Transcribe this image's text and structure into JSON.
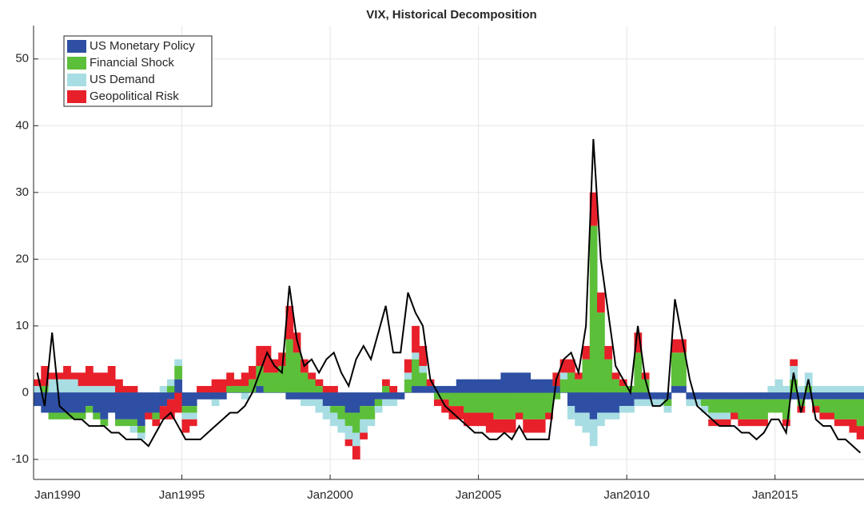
{
  "chart_data": {
    "type": "bar",
    "stacked": true,
    "title": "VIX, Historical Decomposition",
    "x": [
      "1990-01",
      "1990-04",
      "1990-07",
      "1990-10",
      "1991-01",
      "1991-04",
      "1991-07",
      "1991-10",
      "1992-01",
      "1992-04",
      "1992-07",
      "1992-10",
      "1993-01",
      "1993-04",
      "1993-07",
      "1993-10",
      "1994-01",
      "1994-04",
      "1994-07",
      "1994-10",
      "1995-01",
      "1995-04",
      "1995-07",
      "1995-10",
      "1996-01",
      "1996-04",
      "1996-07",
      "1996-10",
      "1997-01",
      "1997-04",
      "1997-07",
      "1997-10",
      "1998-01",
      "1998-04",
      "1998-07",
      "1998-10",
      "1999-01",
      "1999-04",
      "1999-07",
      "1999-10",
      "2000-01",
      "2000-04",
      "2000-07",
      "2000-10",
      "2001-01",
      "2001-04",
      "2001-07",
      "2001-10",
      "2002-01",
      "2002-04",
      "2002-07",
      "2002-10",
      "2003-01",
      "2003-04",
      "2003-07",
      "2003-10",
      "2004-01",
      "2004-04",
      "2004-07",
      "2004-10",
      "2005-01",
      "2005-04",
      "2005-07",
      "2005-10",
      "2006-01",
      "2006-04",
      "2006-07",
      "2006-10",
      "2007-01",
      "2007-04",
      "2007-07",
      "2007-10",
      "2008-01",
      "2008-04",
      "2008-07",
      "2008-10",
      "2009-01",
      "2009-04",
      "2009-07",
      "2009-10",
      "2010-01",
      "2010-04",
      "2010-07",
      "2010-10",
      "2011-01",
      "2011-04",
      "2011-07",
      "2011-10",
      "2012-01",
      "2012-04",
      "2012-07",
      "2012-10",
      "2013-01",
      "2013-04",
      "2013-07",
      "2013-10",
      "2014-01",
      "2014-04",
      "2014-07",
      "2014-10",
      "2015-01",
      "2015-04",
      "2015-07",
      "2015-10",
      "2016-01",
      "2016-04",
      "2016-07",
      "2016-10",
      "2017-01",
      "2017-04",
      "2017-07",
      "2017-10"
    ],
    "series": [
      {
        "name": "US Monetary Policy",
        "color": "#2e4fa3",
        "values": [
          -2,
          -3,
          -3,
          -3,
          -3,
          -3,
          -3,
          -2,
          -3,
          -4,
          -3,
          -4,
          -4,
          -4,
          -5,
          -3,
          -3,
          -2,
          -1,
          2,
          -2,
          -2,
          -1,
          -1,
          -1,
          -1,
          0,
          0,
          0,
          0,
          1,
          0,
          0,
          0,
          -1,
          -1,
          -1,
          -1,
          -1,
          -2,
          -2,
          -2,
          -3,
          -3,
          -2,
          -2,
          -1,
          -1,
          -1,
          -1,
          0,
          1,
          1,
          1,
          1,
          1,
          1,
          2,
          2,
          2,
          2,
          2,
          2,
          3,
          3,
          3,
          3,
          2,
          2,
          2,
          1,
          0,
          -2,
          -3,
          -3,
          -4,
          -3,
          -3,
          -3,
          -2,
          -2,
          -1,
          -1,
          -1,
          -1,
          -1,
          1,
          1,
          -1,
          -1,
          -1,
          -1,
          -1,
          -1,
          -1,
          -1,
          -1,
          -1,
          -1,
          -1,
          -1,
          -1,
          -1,
          -1,
          -1,
          -1,
          -1,
          -1,
          -1,
          -1,
          -1,
          -1
        ]
      },
      {
        "name": "Financial Shock",
        "color": "#5cbf3a",
        "values": [
          0,
          1,
          -1,
          -1,
          -1,
          -1,
          -1,
          -1,
          -1,
          -1,
          0,
          -1,
          -1,
          -1,
          -1,
          0,
          -1,
          0,
          1,
          2,
          -1,
          -1,
          0,
          0,
          0,
          0,
          1,
          1,
          1,
          2,
          3,
          3,
          3,
          4,
          8,
          6,
          3,
          2,
          1,
          0,
          -1,
          -2,
          -2,
          -3,
          -2,
          -2,
          -1,
          1,
          0,
          0,
          2,
          4,
          2,
          0,
          -1,
          -1,
          -2,
          -2,
          -3,
          -3,
          -3,
          -3,
          -4,
          -4,
          -4,
          -3,
          -4,
          -4,
          -4,
          -3,
          -1,
          2,
          3,
          2,
          5,
          25,
          12,
          5,
          2,
          1,
          1,
          6,
          2,
          0,
          0,
          -1,
          5,
          5,
          0,
          0,
          -1,
          -2,
          -2,
          -2,
          -2,
          -3,
          -3,
          -3,
          -3,
          -2,
          -2,
          -3,
          2,
          -1,
          1,
          -1,
          -2,
          -2,
          -3,
          -3,
          -3,
          -4
        ]
      },
      {
        "name": "US Demand",
        "color": "#a8dde3",
        "values": [
          1,
          0,
          2,
          2,
          2,
          2,
          1,
          1,
          1,
          1,
          1,
          0,
          0,
          -1,
          -1,
          0,
          0,
          1,
          1,
          1,
          -1,
          -1,
          0,
          0,
          -1,
          0,
          0,
          0,
          -1,
          0,
          0,
          0,
          0,
          0,
          0,
          0,
          -1,
          -1,
          -2,
          -2,
          -2,
          -2,
          -2,
          -2,
          -2,
          -1,
          -1,
          -1,
          -1,
          0,
          1,
          1,
          1,
          0,
          0,
          0,
          0,
          0,
          0,
          0,
          0,
          0,
          0,
          0,
          0,
          0,
          0,
          0,
          0,
          0,
          0,
          1,
          -2,
          -2,
          -3,
          -4,
          -2,
          -1,
          -1,
          -1,
          -1,
          -1,
          -1,
          -1,
          -1,
          -1,
          0,
          0,
          -1,
          -1,
          -1,
          -1,
          -1,
          -1,
          0,
          0,
          0,
          0,
          0,
          1,
          2,
          1,
          2,
          1,
          2,
          1,
          1,
          1,
          1,
          1,
          1,
          1
        ]
      },
      {
        "name": "Geopolitical Risk",
        "color": "#e8202a",
        "values": [
          1,
          3,
          1,
          1,
          2,
          1,
          2,
          3,
          2,
          2,
          3,
          2,
          1,
          1,
          0,
          -1,
          -1,
          -2,
          -3,
          -3,
          -2,
          -1,
          1,
          1,
          2,
          2,
          2,
          1,
          2,
          2,
          3,
          4,
          2,
          2,
          5,
          3,
          2,
          1,
          1,
          1,
          1,
          0,
          -1,
          -2,
          -1,
          0,
          0,
          1,
          1,
          0,
          2,
          4,
          3,
          1,
          -1,
          -2,
          -2,
          -2,
          -2,
          -2,
          -2,
          -3,
          -2,
          -2,
          -2,
          -1,
          -2,
          -2,
          -2,
          -1,
          2,
          2,
          2,
          1,
          2,
          5,
          3,
          2,
          1,
          1,
          0,
          3,
          1,
          0,
          0,
          0,
          2,
          2,
          0,
          0,
          0,
          -1,
          -1,
          -1,
          -1,
          -1,
          -1,
          -1,
          -1,
          0,
          0,
          -1,
          1,
          -1,
          0,
          -1,
          -1,
          -1,
          -1,
          -1,
          -2,
          -2
        ]
      }
    ],
    "line": {
      "color": "#000000",
      "values": [
        3,
        -2,
        9,
        -2,
        -3,
        -4,
        -4,
        -5,
        -5,
        -5,
        -6,
        -6,
        -7,
        -7,
        -7,
        -8,
        -6,
        -4,
        -3,
        -5,
        -7,
        -7,
        -7,
        -6,
        -5,
        -4,
        -3,
        -3,
        -2,
        0,
        3,
        6,
        4,
        3,
        16,
        8,
        4,
        5,
        3,
        5,
        6,
        3,
        1,
        5,
        7,
        5,
        9,
        13,
        6,
        6,
        15,
        12,
        10,
        2,
        0,
        -2,
        -3,
        -4,
        -5,
        -6,
        -6,
        -7,
        -7,
        -6,
        -7,
        -5,
        -7,
        -7,
        -7,
        -7,
        2,
        5,
        6,
        3,
        10,
        38,
        20,
        12,
        4,
        2,
        0,
        10,
        2,
        -2,
        -2,
        -1,
        14,
        8,
        2,
        -2,
        -3,
        -4,
        -5,
        -5,
        -5,
        -6,
        -6,
        -7,
        -6,
        -4,
        -4,
        -6,
        3,
        -3,
        2,
        -4,
        -5,
        -5,
        -7,
        -7,
        -8,
        -9
      ]
    },
    "xlim": [
      "1990-01",
      "2018-01"
    ],
    "xticks": [
      {
        "value": "1990-01",
        "label": "Jan1990"
      },
      {
        "value": "1995-01",
        "label": "Jan1995"
      },
      {
        "value": "2000-01",
        "label": "Jan2000"
      },
      {
        "value": "2005-01",
        "label": "Jan2005"
      },
      {
        "value": "2010-01",
        "label": "Jan2010"
      },
      {
        "value": "2015-01",
        "label": "Jan2015"
      }
    ],
    "ylim": [
      -13,
      55
    ],
    "yticks": [
      -10,
      0,
      10,
      20,
      30,
      40,
      50
    ],
    "grid": true,
    "legend": "upper-left"
  }
}
